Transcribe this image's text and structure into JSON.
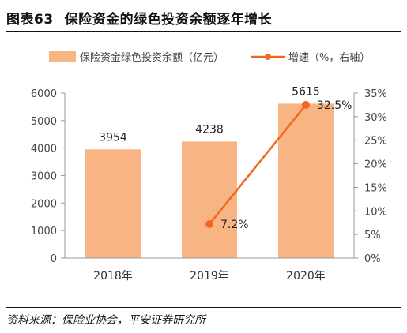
{
  "figure": {
    "label": "图表63",
    "title": "保险资金的绿色投资余额逐年增长",
    "source": "资料来源：保险业协会，平安证券研究所"
  },
  "chart_data": {
    "type": "bar",
    "categories": [
      "2018年",
      "2019年",
      "2020年"
    ],
    "series": [
      {
        "name": "保险资金绿色投资余额（亿元）",
        "type": "bar",
        "axis": "left",
        "values": [
          3954,
          4238,
          5615
        ],
        "data_labels": [
          "3954",
          "4238",
          "5615"
        ],
        "color": "#F9B483"
      },
      {
        "name": "增速（%，右轴）",
        "type": "line",
        "axis": "right",
        "values": [
          null,
          7.2,
          32.5
        ],
        "data_labels": [
          null,
          "7.2%",
          "32.5%"
        ],
        "color": "#F26522"
      }
    ],
    "y_left": {
      "min": 0,
      "max": 6000,
      "ticks": [
        "0",
        "1000",
        "2000",
        "3000",
        "4000",
        "5000",
        "6000"
      ]
    },
    "y_right": {
      "min": 0,
      "max": 35,
      "ticks": [
        "0%",
        "5%",
        "10%",
        "15%",
        "20%",
        "25%",
        "30%",
        "35%"
      ]
    },
    "grid": false,
    "legend_position": "top"
  }
}
